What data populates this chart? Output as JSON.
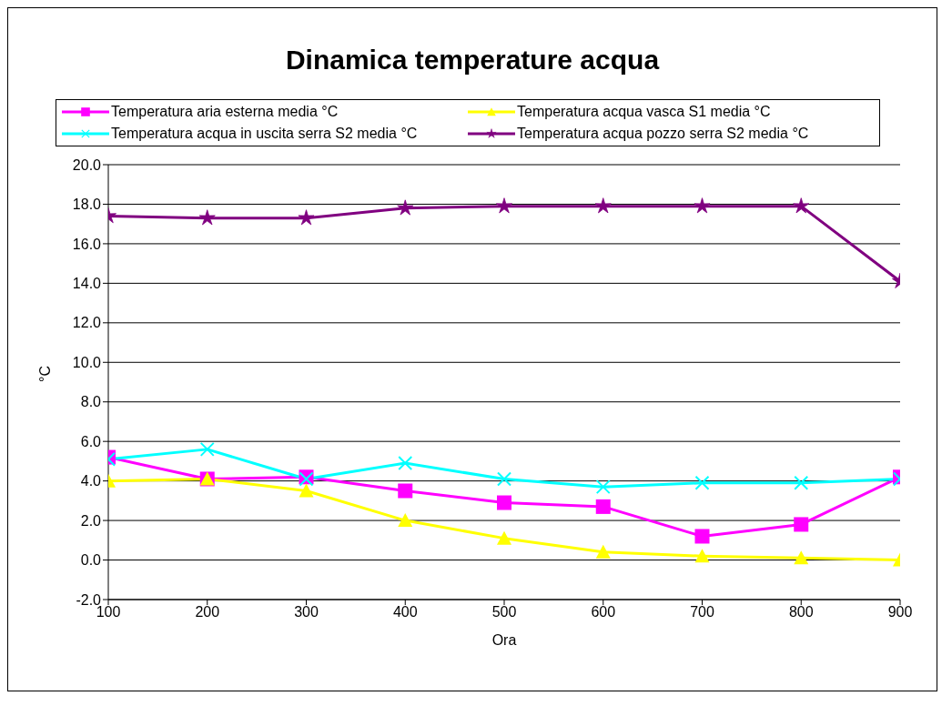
{
  "chart_data": {
    "type": "line",
    "title": "Dinamica temperature acqua",
    "xlabel": "Ora",
    "ylabel": "°C",
    "x": [
      100,
      200,
      300,
      400,
      500,
      600,
      700,
      800,
      900
    ],
    "xlim": [
      100,
      900
    ],
    "xticks": [
      100,
      200,
      300,
      400,
      500,
      600,
      700,
      800,
      900
    ],
    "ylim": [
      -2,
      20
    ],
    "yticks": [
      {
        "value": -2,
        "label": "-2.0"
      },
      {
        "value": 0,
        "label": "0.0"
      },
      {
        "value": 2,
        "label": "2.0"
      },
      {
        "value": 4,
        "label": "4.0"
      },
      {
        "value": 6,
        "label": "6.0"
      },
      {
        "value": 8,
        "label": "8.0"
      },
      {
        "value": 10,
        "label": "10.0"
      },
      {
        "value": 12,
        "label": "12.0"
      },
      {
        "value": 14,
        "label": "14.0"
      },
      {
        "value": 16,
        "label": "16.0"
      },
      {
        "value": 18,
        "label": "18.0"
      },
      {
        "value": 20,
        "label": "20.0"
      }
    ],
    "grid": "y",
    "legend": "top",
    "line_style": "solid",
    "series": [
      {
        "name": "Temperatura aria esterna media °C",
        "color": "#ff00ff",
        "marker": "square",
        "values": [
          5.2,
          4.1,
          4.2,
          3.5,
          2.9,
          2.7,
          1.2,
          1.8,
          4.2
        ]
      },
      {
        "name": "Temperatura acqua vasca S1 media °C",
        "color": "#ffff00",
        "marker": "triangle",
        "values": [
          4.0,
          4.1,
          3.5,
          2.0,
          1.1,
          0.4,
          0.2,
          0.1,
          0.0
        ]
      },
      {
        "name": "Temperatura acqua in uscita serra S2 media °C",
        "color": "#00ffff",
        "marker": "cross",
        "values": [
          5.1,
          5.6,
          4.1,
          4.9,
          4.1,
          3.7,
          3.9,
          3.9,
          4.1
        ]
      },
      {
        "name": "Temperatura acqua pozzo serra S2 media °C",
        "color": "#800080",
        "marker": "star",
        "values": [
          17.4,
          17.3,
          17.3,
          17.8,
          17.9,
          17.9,
          17.9,
          17.9,
          14.1
        ]
      }
    ]
  }
}
